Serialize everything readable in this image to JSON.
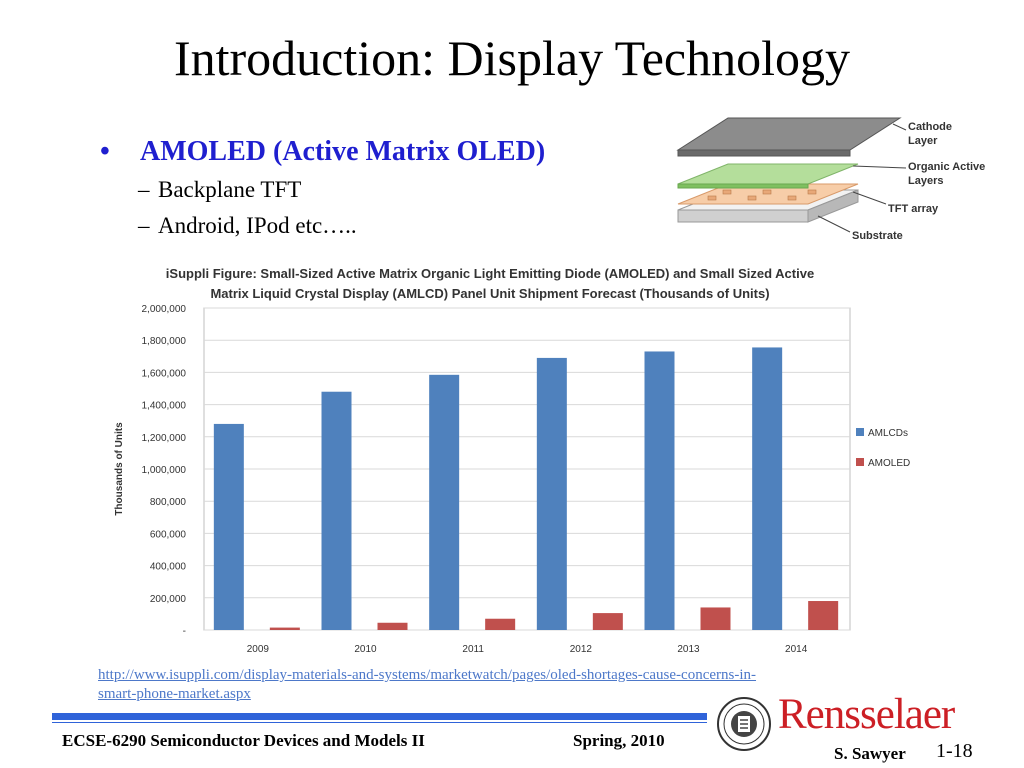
{
  "slide": {
    "title": "Introduction: Display Technology",
    "bullet_main": "AMOLED (Active Matrix OLED)",
    "bullet_dot": "•",
    "sub_dash": "–",
    "sub_items": [
      "Backplane TFT",
      "Android, IPod etc….."
    ],
    "source_url_line1": "http://www.isuppli.com/display-materials-and-systems/marketwatch/pages/oled-shortages-cause-concerns-in-",
    "source_url_line2": "smart-phone-market.aspx"
  },
  "layer_diagram": {
    "labels": [
      "Cathode",
      "Layer",
      "Organic Active",
      "Layers",
      "TFT array",
      "Substrate"
    ]
  },
  "footer": {
    "course": "ECSE-6290 Semiconductor Devices and Models II",
    "term": "Spring, 2010",
    "author": "S. Sawyer",
    "page": "1-18",
    "brand": "Rensselaer"
  },
  "chart_data": {
    "type": "bar",
    "title_line1": "iSuppli Figure: Small-Sized Active Matrix Organic Light Emitting Diode (AMOLED) and Small Sized Active",
    "title_line2": "Matrix Liquid Crystal Display (AMLCD) Panel Unit Shipment Forecast (Thousands of Units)",
    "ylabel": "Thousands of Units",
    "categories": [
      "2009",
      "2010",
      "2011",
      "2012",
      "2013",
      "2014"
    ],
    "series": [
      {
        "name": "AMLCDs",
        "color": "#4f81bd",
        "values": [
          1280000,
          1480000,
          1585000,
          1690000,
          1730000,
          1755000
        ]
      },
      {
        "name": "AMOLEDs",
        "color": "#c0504d",
        "values": [
          15000,
          45000,
          70000,
          105000,
          140000,
          180000
        ]
      }
    ],
    "ylim": [
      0,
      2000000
    ],
    "yticks": [
      "-",
      "200,000",
      "400,000",
      "600,000",
      "800,000",
      "1,000,000",
      "1,200,000",
      "1,400,000",
      "1,600,000",
      "1,800,000",
      "2,000,000"
    ],
    "grid": true,
    "legend": "right"
  }
}
